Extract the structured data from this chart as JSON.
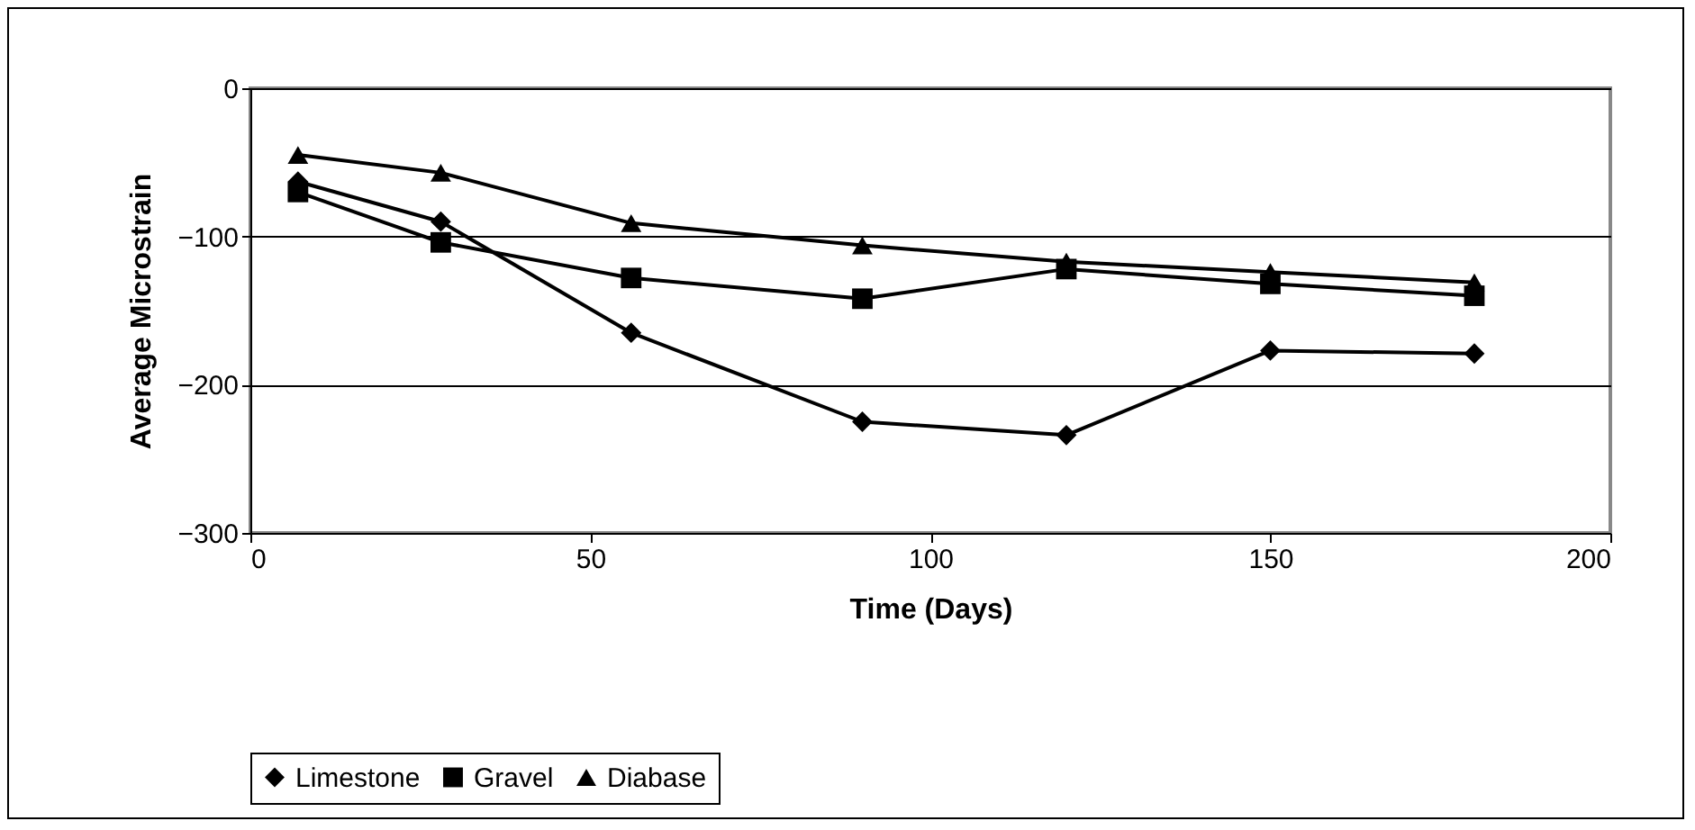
{
  "chart_data": {
    "type": "line",
    "xlabel": "Time (Days)",
    "ylabel": "Average Microstrain",
    "x": [
      7,
      28,
      56,
      90,
      120,
      150,
      180
    ],
    "series": [
      {
        "name": "Limestone",
        "color": "#000000",
        "marker": "diamond",
        "values": [
          -63,
          -90,
          -165,
          -225,
          -234,
          -177,
          -179
        ]
      },
      {
        "name": "Gravel",
        "color": "#000000",
        "marker": "square",
        "values": [
          -70,
          -104,
          -128,
          -142,
          -122,
          -132,
          -140
        ]
      },
      {
        "name": "Diabase",
        "color": "#000000",
        "marker": "triangle",
        "values": [
          -45,
          -57,
          -91,
          -106,
          -117,
          -124,
          -131
        ]
      }
    ],
    "xlim": [
      0,
      200
    ],
    "xticks": [
      0,
      50,
      100,
      150,
      200
    ],
    "ylim": [
      -300,
      0
    ],
    "yticks": [
      -300,
      -200,
      -100,
      0
    ],
    "grid": "y",
    "legend": "bottom",
    "line_style": "solid"
  }
}
